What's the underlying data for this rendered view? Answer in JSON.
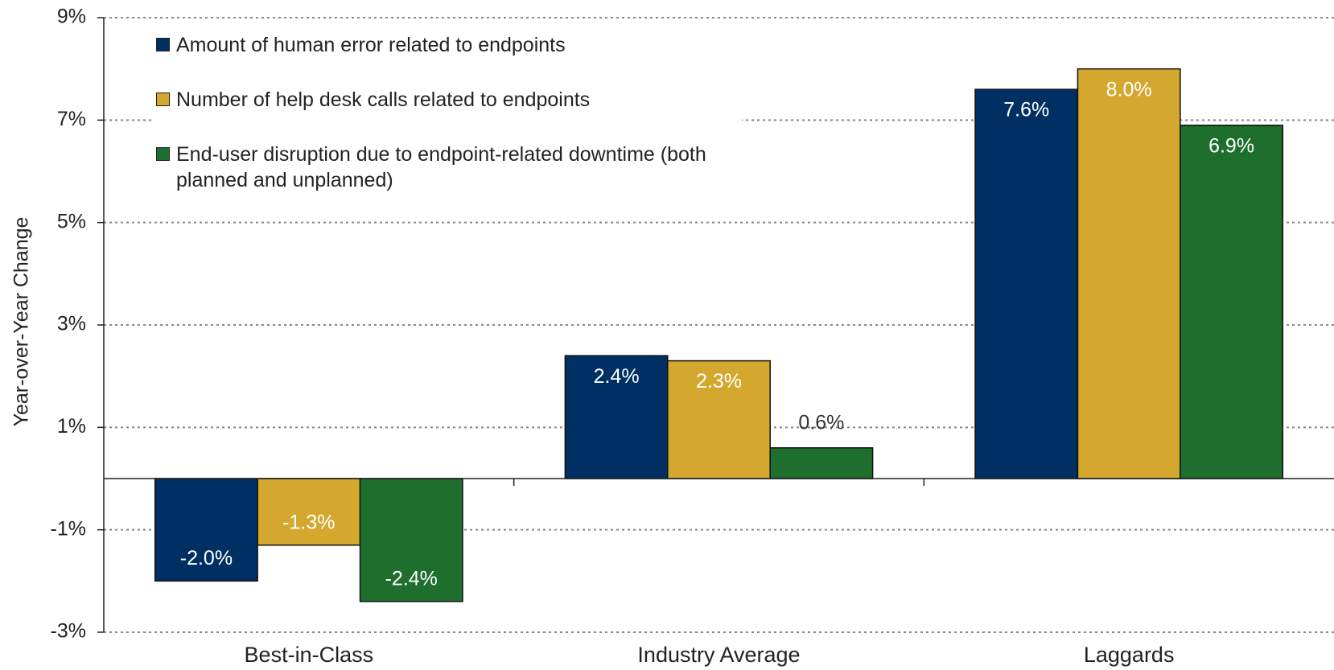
{
  "chart_data": {
    "type": "bar",
    "y_label": "Year-over-Year Change",
    "categories": [
      "Best-in-Class",
      "Industry Average",
      "Laggards"
    ],
    "series": [
      {
        "name": "Amount of human error related to endpoints",
        "color": "#003063",
        "values": [
          -2.0,
          2.4,
          7.6
        ],
        "value_labels": [
          "-2.0%",
          "2.4%",
          "7.6%"
        ]
      },
      {
        "name": "Number of help desk calls related to endpoints",
        "color": "#d4a82e",
        "values": [
          -1.3,
          2.3,
          8.0
        ],
        "value_labels": [
          "-1.3%",
          "2.3%",
          "8.0%"
        ]
      },
      {
        "name": "End-user disruption due to endpoint-related downtime (both planned and unplanned)",
        "color": "#1e6e2e",
        "values": [
          -2.4,
          0.6,
          6.9
        ],
        "value_labels": [
          "-2.4%",
          "0.6%",
          "6.9%"
        ]
      }
    ],
    "ylim": [
      -3,
      9
    ],
    "yticks": [
      {
        "value": 9,
        "label": "9%"
      },
      {
        "value": 7,
        "label": "7%"
      },
      {
        "value": 5,
        "label": "5%"
      },
      {
        "value": 3,
        "label": "3%"
      },
      {
        "value": 1,
        "label": "1%"
      },
      {
        "value": -1,
        "label": "-1%"
      },
      {
        "value": -3,
        "label": "-3%"
      }
    ],
    "grid": true,
    "legend": "upper left"
  }
}
